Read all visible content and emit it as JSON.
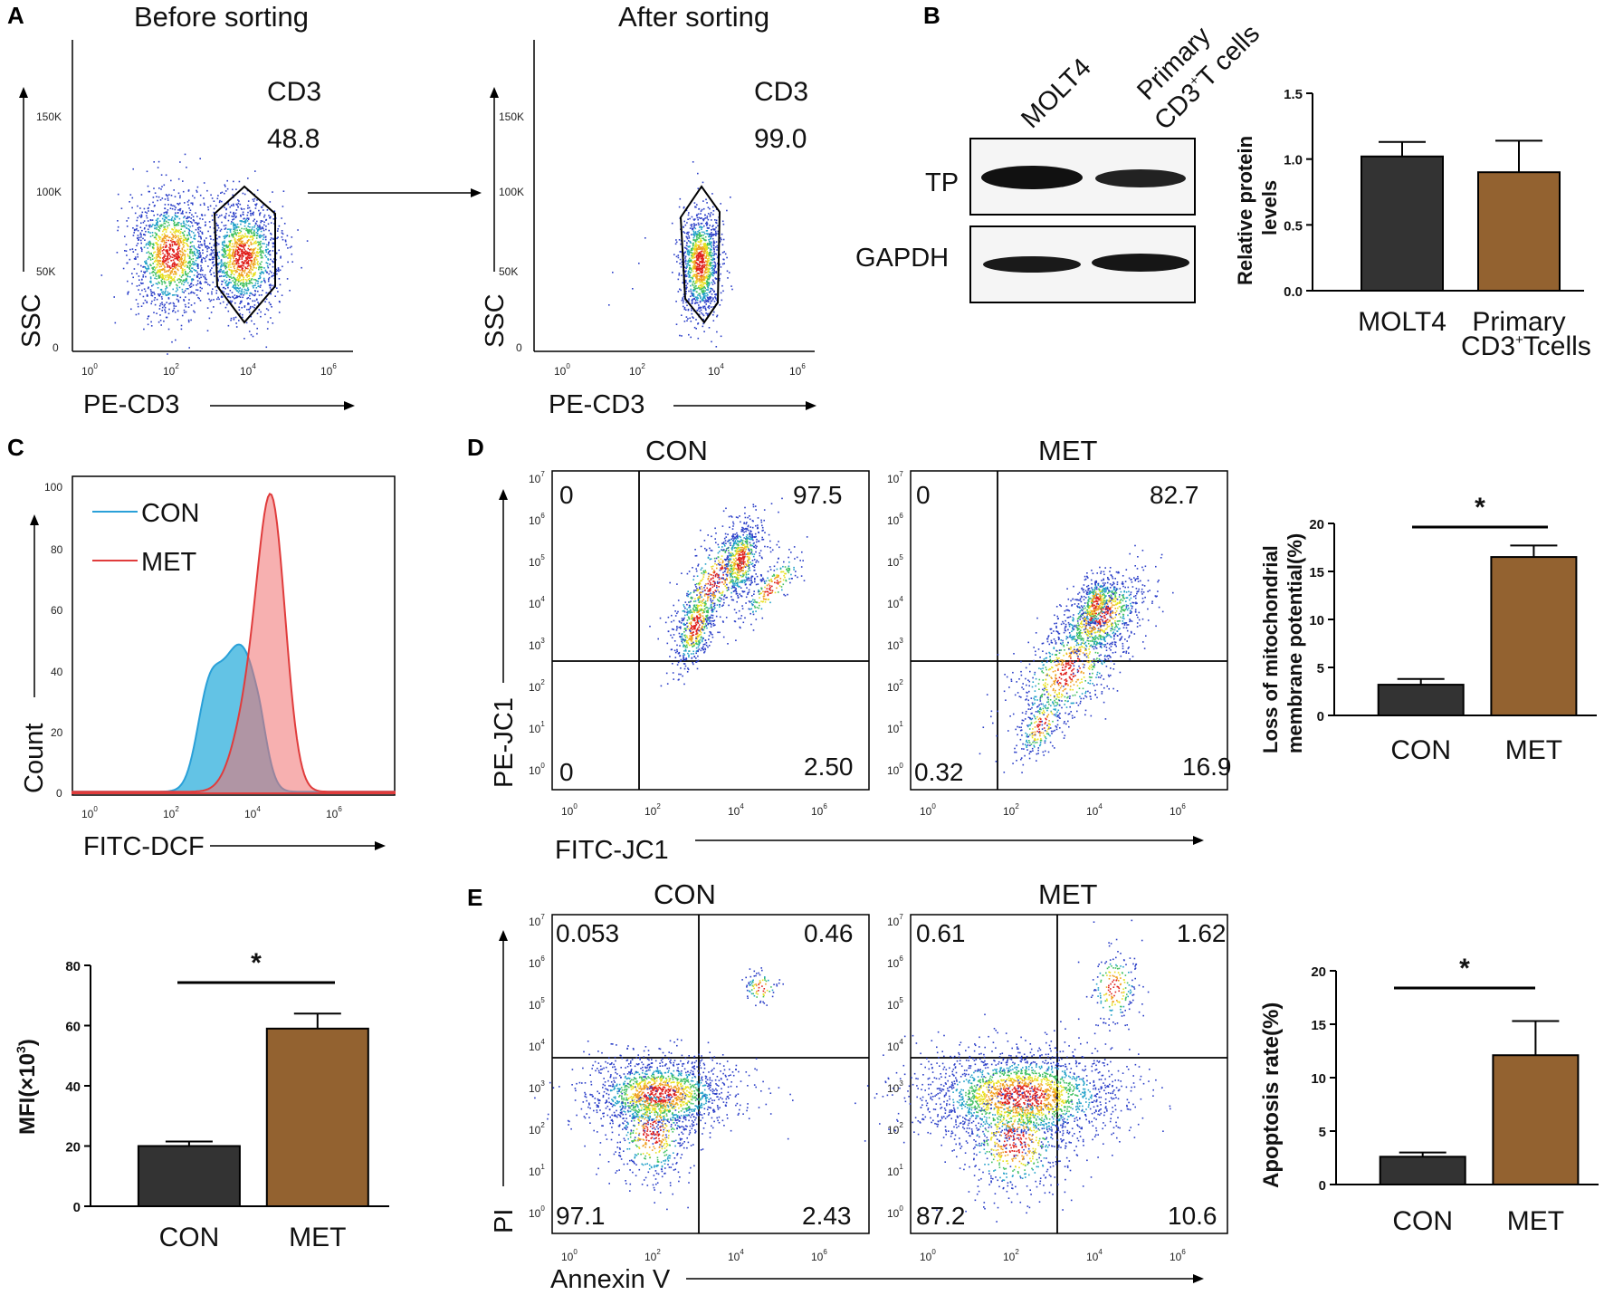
{
  "panels": {
    "A": {
      "letter": "A",
      "before_title": "Before sorting",
      "after_title": "After sorting",
      "gate_name": "CD3",
      "before_value": "48.8",
      "after_value": "99.0",
      "x_label": "PE-CD3",
      "y_label": "SSC",
      "y_ticks": [
        "150K",
        "100K",
        "50K",
        "0"
      ]
    },
    "B": {
      "letter": "B",
      "lane_labels": [
        "MOLT4",
        "Primary",
        "CD3",
        "+",
        "T cells"
      ],
      "blot_rows": [
        "TP",
        "GAPDH"
      ],
      "y_label": [
        "Relative protein",
        "levels"
      ],
      "categories_line2": [
        "",
        "CD3",
        "+",
        "Tcells"
      ]
    },
    "C": {
      "letter": "C",
      "legend": [
        "CON",
        "MET"
      ],
      "x_label": "FITC-DCF",
      "y_label": "Count",
      "y_ticks": [
        "100",
        "80",
        "60",
        "40",
        "20",
        "0"
      ],
      "bar_y_label": "MFI(×10",
      "bar_y_sup": "3",
      "bar_y_close": ")",
      "significance": "*"
    },
    "D": {
      "letter": "D",
      "titles": [
        "CON",
        "MET"
      ],
      "con_quadrants": [
        "0",
        "97.5",
        "0",
        "2.50"
      ],
      "met_quadrants": [
        "0",
        "82.7",
        "0.32",
        "16.9"
      ],
      "x_label": "FITC-JC1",
      "y_label": "PE-JC1",
      "bar_y_label": [
        "Loss of mitochondrial",
        "membrane potential(%)"
      ],
      "significance": "*"
    },
    "E": {
      "letter": "E",
      "titles": [
        "CON",
        "MET"
      ],
      "con_quadrants": [
        "0.053",
        "0.46",
        "97.1",
        "2.43"
      ],
      "met_quadrants": [
        "0.61",
        "1.62",
        "87.2",
        "10.6"
      ],
      "x_label": "Annexin V",
      "y_label": "PI",
      "bar_y_label": "Apoptosis rate(%)",
      "significance": "*"
    }
  },
  "chart_data": [
    {
      "type": "bar",
      "id": "B_bar",
      "title": "",
      "categories": [
        "MOLT4",
        "Primary"
      ],
      "values": [
        1.02,
        0.9
      ],
      "errors": [
        0.11,
        0.24
      ],
      "ylabel": "Relative protein levels",
      "ylim": [
        0,
        1.5
      ],
      "yticks": [
        "0.0",
        "0.5",
        "1.0",
        "1.5"
      ],
      "colors": [
        "#333333",
        "#936230"
      ]
    },
    {
      "type": "bar",
      "id": "C_bar",
      "title": "",
      "categories": [
        "CON",
        "MET"
      ],
      "values": [
        20,
        59
      ],
      "errors": [
        1.5,
        5
      ],
      "ylabel": "MFI(×10^3)",
      "ylim": [
        0,
        80
      ],
      "yticks": [
        "0",
        "20",
        "40",
        "60",
        "80"
      ],
      "colors": [
        "#333333",
        "#936230"
      ]
    },
    {
      "type": "bar",
      "id": "D_bar",
      "title": "",
      "categories": [
        "CON",
        "MET"
      ],
      "values": [
        3.2,
        16.5
      ],
      "errors": [
        0.6,
        1.2
      ],
      "ylabel": "Loss of mitochondrial membrane potential(%)",
      "ylim": [
        0,
        20
      ],
      "yticks": [
        "0",
        "5",
        "10",
        "15",
        "20"
      ],
      "colors": [
        "#333333",
        "#936230"
      ]
    },
    {
      "type": "bar",
      "id": "E_bar",
      "title": "",
      "categories": [
        "CON",
        "MET"
      ],
      "values": [
        2.6,
        12.1
      ],
      "errors": [
        0.4,
        3.2
      ],
      "ylabel": "Apoptosis rate(%)",
      "ylim": [
        0,
        20
      ],
      "yticks": [
        "0",
        "5",
        "10",
        "15",
        "20"
      ],
      "colors": [
        "#333333",
        "#936230"
      ]
    },
    {
      "type": "area",
      "id": "C_hist",
      "series": [
        {
          "name": "CON"
        },
        {
          "name": "MET"
        }
      ],
      "ylabel": "Count",
      "xlabel": "FITC-DCF",
      "ylim": [
        0,
        100
      ]
    }
  ]
}
